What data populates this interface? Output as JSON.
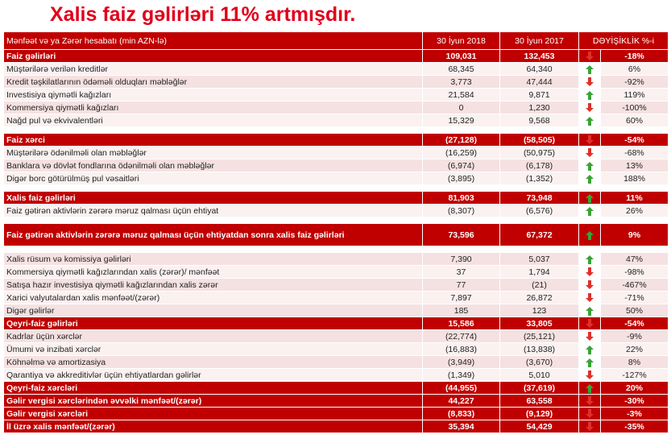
{
  "title": "Xalis faiz gəlirləri 11% artmışdır.",
  "table": {
    "header": [
      "Mənfəət və ya Zərər hesabatı  (min AZN-lə)",
      "30 İyun 2018",
      "30 İyun 2017",
      "DƏYİŞİKLİK %-i"
    ],
    "sections": [
      {
        "rows": [
          {
            "kind": "total",
            "label": "Faiz gəlirləri",
            "v2018": "109,031",
            "v2017": "132,453",
            "trend": "down",
            "change": "-18%"
          },
          {
            "kind": "item",
            "label": "Müştərilərə verilən kreditlər",
            "v2018": "68,345",
            "v2017": "64,340",
            "trend": "up",
            "change": "6%"
          },
          {
            "kind": "item",
            "label": "Kredit təşkilatlarının ödəməli olduqları məbləğlər",
            "v2018": "3,773",
            "v2017": "47,444",
            "trend": "down",
            "change": "-92%"
          },
          {
            "kind": "item",
            "label": "Investisiya qiymətli kağızları",
            "v2018": "21,584",
            "v2017": "9,871",
            "trend": "up",
            "change": "119%"
          },
          {
            "kind": "item",
            "label": "Kommersiya qiymətli kağızları",
            "v2018": "0",
            "v2017": "1,230",
            "trend": "down",
            "change": "-100%"
          },
          {
            "kind": "item",
            "label": "Nağd pul və ekvivalentləri",
            "v2018": "15,329",
            "v2017": "9,568",
            "trend": "up",
            "change": "60%"
          }
        ]
      },
      {
        "rows": [
          {
            "kind": "total",
            "label": "Faiz xərci",
            "v2018": "(27,128)",
            "v2017": "(58,505)",
            "trend": "down",
            "change": "-54%"
          },
          {
            "kind": "item",
            "label": "Müştərilərə ödənilməli olan məbləğlər",
            "v2018": "(16,259)",
            "v2017": "(50,975)",
            "trend": "down",
            "change": "-68%"
          },
          {
            "kind": "item",
            "label": "Banklara və dövlət fondlarına ödənilməli olan məbləğlər",
            "v2018": "(6,974)",
            "v2017": "(6,178)",
            "trend": "up",
            "change": "13%"
          },
          {
            "kind": "item",
            "label": "Digər borc götürülmüş pul vəsaitləri",
            "v2018": "(3,895)",
            "v2017": "(1,352)",
            "trend": "up",
            "change": "188%"
          }
        ]
      },
      {
        "rows": [
          {
            "kind": "total",
            "label": "Xalis faiz gəlirləri",
            "v2018": "81,903",
            "v2017": "73,948",
            "trend": "up",
            "change": "11%"
          },
          {
            "kind": "item",
            "label": "Faiz gətirən aktivlərin zərərə məruz qalması üçün ehtiyat",
            "v2018": "(8,307)",
            "v2017": "(6,576)",
            "trend": "up",
            "change": "26%"
          }
        ]
      },
      {
        "rows": [
          {
            "kind": "tall",
            "label": "Faiz gətirən aktivlərin zərərə məruz qalması üçün ehtiyatdan sonra xalis faiz gəlirləri",
            "v2018": "73,596",
            "v2017": "67,372",
            "trend": "up",
            "change": "9%"
          }
        ]
      },
      {
        "rows": [
          {
            "kind": "item",
            "label": "Xalis rüsum və komissiya gəlirləri",
            "v2018": "7,390",
            "v2017": "5,037",
            "trend": "up",
            "change": "47%"
          },
          {
            "kind": "item",
            "label": "Kommersiya qiymətli kağızlarından xalis (zərər)/ mənfəət",
            "v2018": "37",
            "v2017": "1,794",
            "trend": "down",
            "change": "-98%"
          },
          {
            "kind": "item",
            "label": "Satışa hazır investisiya qiymətli kağızlarından xalis zərər",
            "v2018": "77",
            "v2017": "(21)",
            "trend": "down",
            "change": "-467%"
          },
          {
            "kind": "item",
            "label": "Xarici valyutalardan xalis mənfəət/(zərər)",
            "v2018": "7,897",
            "v2017": "26,872",
            "trend": "down",
            "change": "-71%"
          },
          {
            "kind": "item",
            "label": "Digər gəlirlər",
            "v2018": "185",
            "v2017": "123",
            "trend": "up",
            "change": "50%"
          },
          {
            "kind": "total",
            "label": "Qeyri-faiz gəlirləri",
            "v2018": "15,586",
            "v2017": "33,805",
            "trend": "down",
            "change": "-54%"
          },
          {
            "kind": "item",
            "label": "Kadrlar üçün xərclər",
            "v2018": "(22,774)",
            "v2017": "(25,121)",
            "trend": "down",
            "change": "-9%"
          },
          {
            "kind": "item",
            "label": "Ümumi və inzibati xərclər",
            "v2018": "(16,883)",
            "v2017": "(13,838)",
            "trend": "up",
            "change": "22%"
          },
          {
            "kind": "item",
            "label": "Köhnəlmə və amortizasiya",
            "v2018": "(3,949)",
            "v2017": "(3,670)",
            "trend": "up",
            "change": "8%"
          },
          {
            "kind": "item",
            "label": "Qarantiya və akkreditivlər üçün ehtiyatlardan gəlirlər",
            "v2018": "(1,349)",
            "v2017": "5,010",
            "trend": "down",
            "change": "-127%"
          },
          {
            "kind": "total",
            "label": "Qeyri-faiz xərcləri",
            "v2018": "(44,955)",
            "v2017": "(37,619)",
            "trend": "up",
            "change": "20%"
          },
          {
            "kind": "total",
            "label": "Gəlir vergisi xərclərindən əvvəlki mənfəət/(zərər)",
            "v2018": "44,227",
            "v2017": "63,558",
            "trend": "down",
            "change": "-30%"
          },
          {
            "kind": "total",
            "label": "Gəlir vergisi xərcləri",
            "v2018": "(8,833)",
            "v2017": "(9,129)",
            "trend": "down",
            "change": "-3%"
          },
          {
            "kind": "total",
            "label": "İl üzrə xalis mənfəət/(zərər)",
            "v2018": "35,394",
            "v2017": "54,429",
            "trend": "down",
            "change": "-35%"
          }
        ]
      }
    ]
  }
}
